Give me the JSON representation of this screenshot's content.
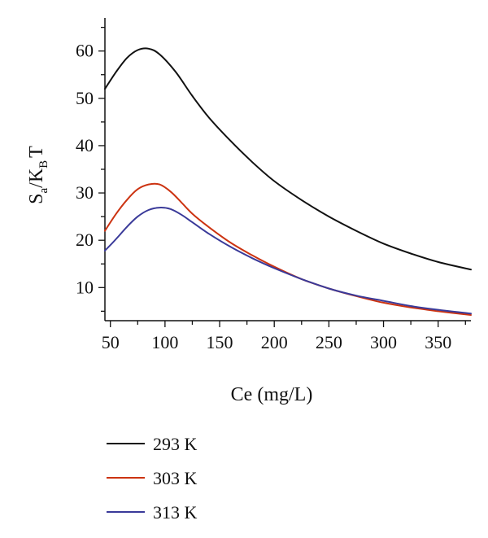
{
  "chart_data": {
    "type": "line",
    "title": "",
    "xlabel": "Ce (mg/L)",
    "ylabel": {
      "s": "S",
      "a": "a",
      "slash": "/",
      "k": "K",
      "b": "B",
      "t": "T"
    },
    "xlim": [
      45,
      380
    ],
    "ylim": [
      3,
      67
    ],
    "xticks": [
      50,
      100,
      150,
      200,
      250,
      300,
      350
    ],
    "yticks": [
      10,
      20,
      30,
      40,
      50,
      60
    ],
    "grid": false,
    "legend_position": "bottom",
    "series": [
      {
        "name": "293 K",
        "color": "#111111",
        "points": [
          [
            45,
            52
          ],
          [
            55,
            55.5
          ],
          [
            65,
            58.5
          ],
          [
            75,
            60.2
          ],
          [
            85,
            60.5
          ],
          [
            95,
            59.3
          ],
          [
            110,
            55.5
          ],
          [
            125,
            50.5
          ],
          [
            140,
            46
          ],
          [
            160,
            41
          ],
          [
            180,
            36.5
          ],
          [
            200,
            32.5
          ],
          [
            225,
            28.5
          ],
          [
            250,
            25
          ],
          [
            275,
            22
          ],
          [
            300,
            19.3
          ],
          [
            325,
            17.2
          ],
          [
            350,
            15.4
          ],
          [
            380,
            13.8
          ]
        ]
      },
      {
        "name": "303 K",
        "color": "#cc3311",
        "points": [
          [
            45,
            22
          ],
          [
            55,
            25.5
          ],
          [
            65,
            28.5
          ],
          [
            75,
            30.8
          ],
          [
            85,
            31.8
          ],
          [
            95,
            31.8
          ],
          [
            105,
            30.3
          ],
          [
            115,
            28
          ],
          [
            125,
            25.6
          ],
          [
            140,
            22.8
          ],
          [
            160,
            19.5
          ],
          [
            180,
            16.8
          ],
          [
            200,
            14.4
          ],
          [
            225,
            11.8
          ],
          [
            250,
            9.8
          ],
          [
            275,
            8.2
          ],
          [
            300,
            6.8
          ],
          [
            325,
            5.8
          ],
          [
            350,
            5
          ],
          [
            380,
            4.2
          ]
        ]
      },
      {
        "name": "313 K",
        "color": "#3a3a99",
        "points": [
          [
            45,
            17.8
          ],
          [
            55,
            20.2
          ],
          [
            65,
            22.8
          ],
          [
            75,
            25
          ],
          [
            85,
            26.4
          ],
          [
            95,
            26.9
          ],
          [
            105,
            26.6
          ],
          [
            115,
            25.4
          ],
          [
            125,
            23.8
          ],
          [
            140,
            21.4
          ],
          [
            160,
            18.6
          ],
          [
            180,
            16.2
          ],
          [
            200,
            14.1
          ],
          [
            225,
            11.8
          ],
          [
            250,
            9.8
          ],
          [
            275,
            8.3
          ],
          [
            300,
            7.2
          ],
          [
            325,
            6.1
          ],
          [
            350,
            5.3
          ],
          [
            380,
            4.5
          ]
        ]
      }
    ]
  }
}
